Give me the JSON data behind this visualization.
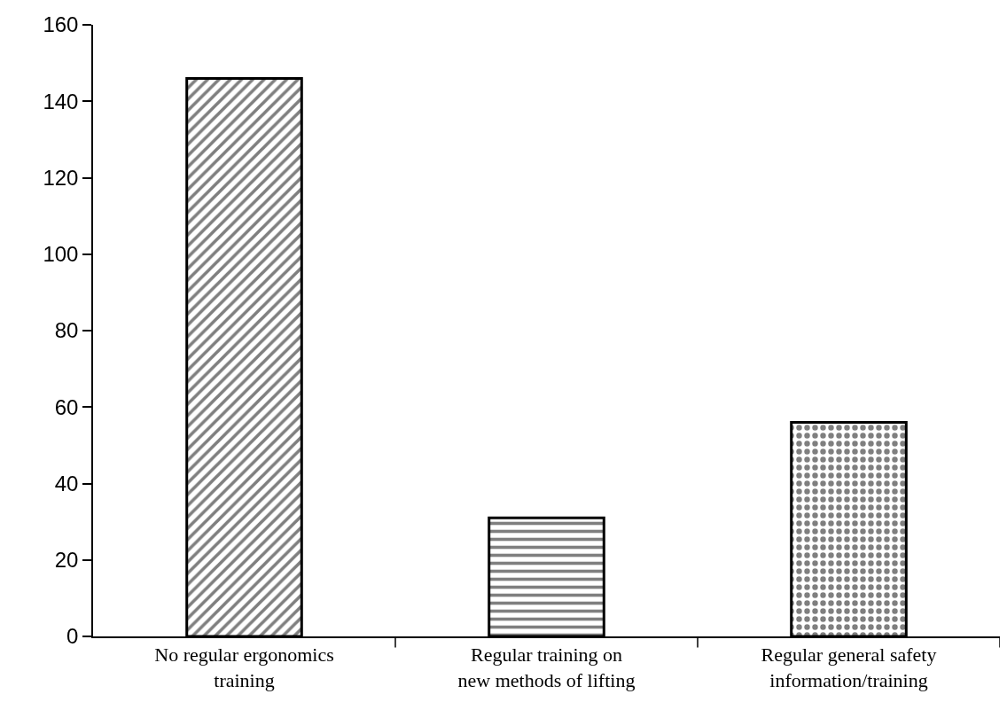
{
  "chart_data": {
    "type": "bar",
    "categories": [
      "No regular ergonomics training",
      "Regular training on new methods of lifting",
      "Regular general safety information/training"
    ],
    "values": [
      146,
      31,
      56
    ],
    "color": "#000000",
    "ylim": [
      0,
      160
    ],
    "yticks": [
      0,
      20,
      40,
      60,
      80,
      100,
      120,
      140,
      160
    ]
  }
}
